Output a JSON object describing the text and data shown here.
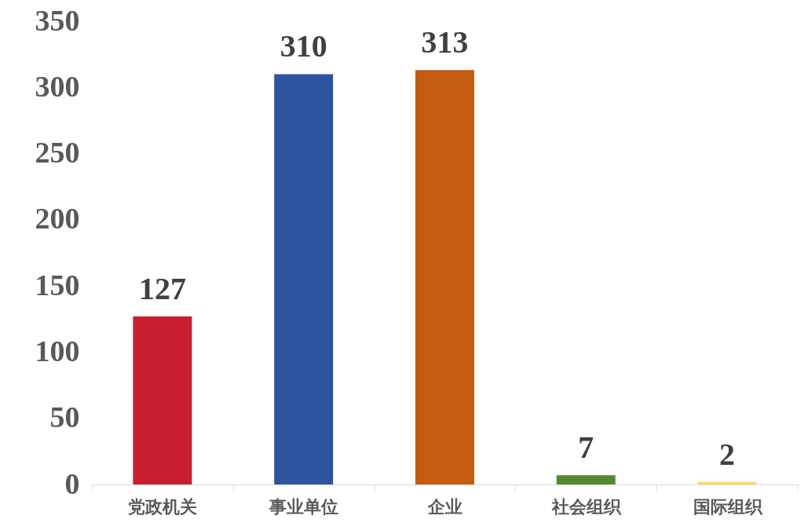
{
  "chart_data": {
    "type": "bar",
    "categories": [
      "党政机关",
      "事业单位",
      "企业",
      "社会组织",
      "国际组织"
    ],
    "values": [
      127,
      310,
      313,
      7,
      2
    ],
    "colors": [
      "#c81e32",
      "#2e54a0",
      "#c55a11",
      "#548a2f",
      "#ffd966"
    ],
    "ylim": [
      0,
      350
    ],
    "yticks": [
      0,
      50,
      100,
      150,
      200,
      250,
      300,
      350
    ],
    "data_labels": true,
    "grid": false
  }
}
